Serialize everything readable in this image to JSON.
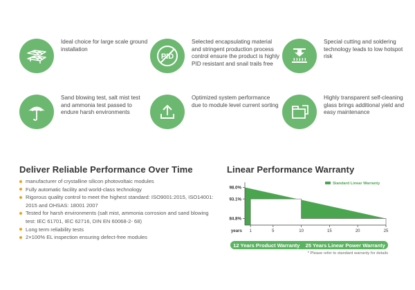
{
  "features": [
    {
      "icon": "solar-panels-icon",
      "text": "Ideal choice for large scale ground installation"
    },
    {
      "icon": "pid-prohibited-icon",
      "icon_label": "PID",
      "text": "Selected encapsulating material and stringent production process control ensure the product is highly PID resistant and snail trails free"
    },
    {
      "icon": "cell-cutting-icon",
      "text": "Special cutting and soldering technology leads to low hotspot risk"
    },
    {
      "icon": "umbrella-icon",
      "text": "Sand blowing test, salt mist test and ammonia test passed to endure harsh environments"
    },
    {
      "icon": "upload-arrow-icon",
      "text": "Optimized system performance due to module level current sorting"
    },
    {
      "icon": "glass-window-icon",
      "text": "Highly transparent self-cleaning glass brings additional yield and easy maintenance"
    }
  ],
  "reliability": {
    "title": "Deliver Reliable Performance Over Time",
    "bullet_color": "#e8a21a",
    "items": [
      "manufacturer of crystalline silicon photovoltaic modules",
      "Fully automatic facility and world-class technology",
      "Rigorous quality control to meet the highest standard: ISO9001:2015, ISO14001: 2015 and OHSAS: 18001 2007",
      "Tested for harsh environments (salt mist, ammonia corrosion and sand blowing test: IEC 61701, IEC 62716, DIN EN 60068-2- 68)",
      "Long term reliability tests",
      "2×100% EL inspection ensuring defect-free modules"
    ]
  },
  "warranty": {
    "title": "Linear Performance Warranty",
    "bar_left": "12 Years Product Warranty",
    "bar_right": "25 Years Linear Power Warranty",
    "note": "* Please refer to standard warranty for details"
  },
  "chart_data": {
    "type": "area",
    "x_axis_label": "years",
    "x_ticks": [
      "1",
      "5",
      "10",
      "15",
      "20",
      "25"
    ],
    "x_tick_values": [
      1,
      5,
      10,
      15,
      20,
      25
    ],
    "y_ticks": [
      "98.0%",
      "93.1%",
      "84.8%"
    ],
    "y_tick_values": [
      98.0,
      93.1,
      84.8
    ],
    "xlim": [
      0,
      25
    ],
    "ylim": [
      82,
      99
    ],
    "series": [
      {
        "name": "Standard Linear Warranty",
        "color": "#4aa54f",
        "x": [
          0,
          25
        ],
        "y": [
          98.0,
          84.8
        ]
      }
    ],
    "standard_step": {
      "color": "#ffffff",
      "x": [
        1,
        10,
        10,
        25
      ],
      "y": [
        93.1,
        93.1,
        84.8,
        84.8
      ]
    },
    "legend_position": "top-right",
    "grid": false
  },
  "colors": {
    "icon_bg": "#6cb870",
    "accent": "#5ab35f",
    "chart_fill": "#4aa54f"
  }
}
